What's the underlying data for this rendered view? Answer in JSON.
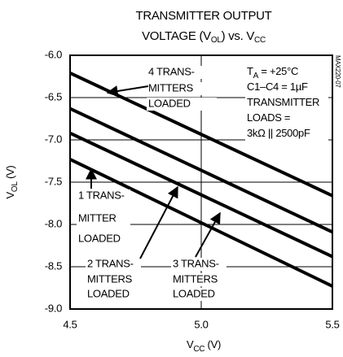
{
  "chart_data": {
    "type": "line",
    "title": [
      [
        {
          "t": "TRANSMITTER OUTPUT"
        }
      ],
      [
        {
          "t": "VOLTAGE (V"
        },
        {
          "sub": "OL"
        },
        {
          "t": ") vs. V"
        },
        {
          "sub": "CC"
        }
      ]
    ],
    "x_label": [
      {
        "t": "V"
      },
      {
        "sub": "CC"
      },
      {
        "t": " (V)"
      }
    ],
    "y_label": [
      {
        "t": "V"
      },
      {
        "sub": "OL"
      },
      {
        "t": " (V)"
      }
    ],
    "xlim": [
      4.5,
      5.5
    ],
    "ylim": [
      -9.0,
      -6.0
    ],
    "xticks": [
      4.5,
      {
        "value": 5,
        "label": "5.0"
      },
      5.5
    ],
    "yticks": [
      {
        "value": -6,
        "label": "-6.0"
      },
      -6.5,
      {
        "value": -7,
        "label": "-7.0"
      },
      -7.5,
      {
        "value": -8,
        "label": "-8.0"
      },
      -8.5,
      {
        "value": -9,
        "label": "-9.0"
      }
    ],
    "grid": true,
    "series": [
      {
        "color": "#000000",
        "x": [
          4.5,
          5.5
        ],
        "values": [
          -6.21,
          -7.66
        ]
      },
      {
        "color": "#000000",
        "x": [
          4.5,
          5.5
        ],
        "values": [
          -6.63,
          -8.09
        ]
      },
      {
        "color": "#000000",
        "x": [
          4.5,
          5.5
        ],
        "values": [
          -6.92,
          -8.38
        ]
      },
      {
        "color": "#000000",
        "x": [
          4.5,
          5.5
        ],
        "values": [
          -7.23,
          -8.73
        ]
      }
    ],
    "annotations": [
      [
        "4 TRANS-",
        "MITTERS",
        "LOADED"
      ],
      [
        "1 TRANS-",
        "MITTER",
        "LOADED"
      ],
      [
        "2 TRANS-",
        "MITTERS",
        "LOADED"
      ],
      [
        "3 TRANS-",
        "MITTERS",
        "LOADED"
      ]
    ],
    "conditions": [
      [
        {
          "t": "T"
        },
        {
          "sub": "A"
        },
        {
          "t": " = +25°C"
        }
      ],
      [
        {
          "t": "C1–C4 = 1µF"
        }
      ],
      [
        {
          "t": "TRANSMITTER"
        }
      ],
      [
        {
          "t": "LOADS ="
        }
      ],
      [
        {
          "t": "3kΩ || 2500pF"
        }
      ]
    ],
    "figure_id": "MAX220-07"
  }
}
